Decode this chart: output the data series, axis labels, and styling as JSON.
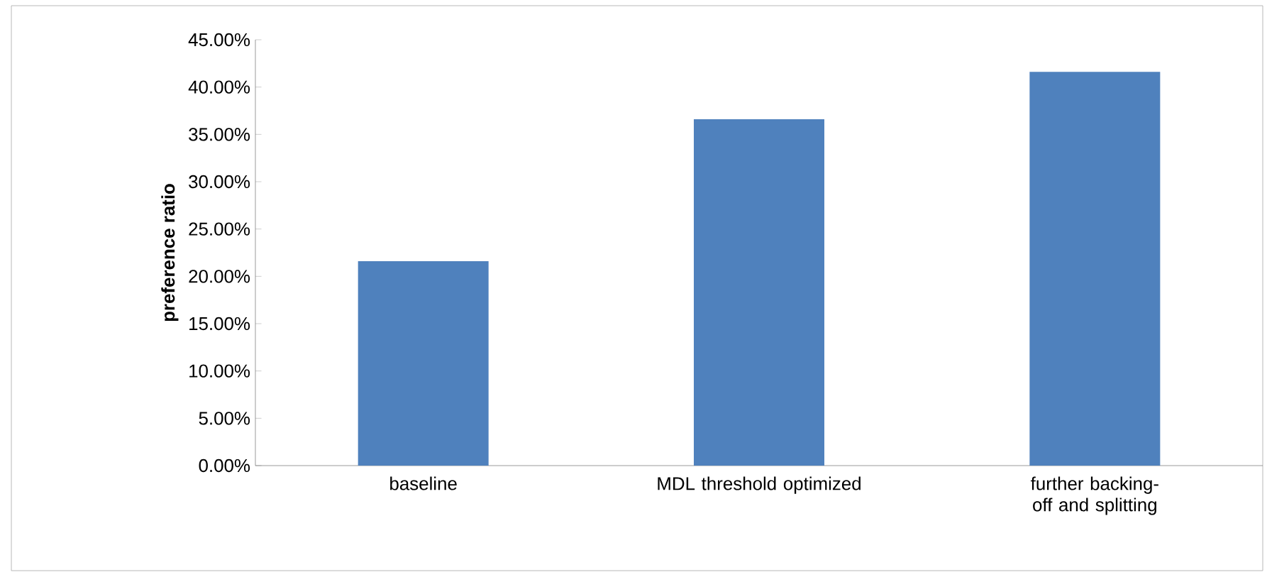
{
  "chart_data": {
    "type": "bar",
    "ylabel": "preference ratio",
    "categories": [
      "baseline",
      "MDL threshold optimized",
      "further backing-off and splitting"
    ],
    "values": [
      21.6,
      36.6,
      41.6
    ],
    "color": "#4f81bd",
    "ylim": [
      0,
      45
    ],
    "yticks": [
      {
        "value": 0,
        "label": "0.00%"
      },
      {
        "value": 5,
        "label": "5.00%"
      },
      {
        "value": 10,
        "label": "10.00%"
      },
      {
        "value": 15,
        "label": "15.00%"
      },
      {
        "value": 20,
        "label": "20.00%"
      },
      {
        "value": 25,
        "label": "25.00%"
      },
      {
        "value": 30,
        "label": "30.00%"
      },
      {
        "value": 35,
        "label": "35.00%"
      },
      {
        "value": 40,
        "label": "40.00%"
      },
      {
        "value": 45,
        "label": "45.00%"
      }
    ],
    "grid": false
  }
}
